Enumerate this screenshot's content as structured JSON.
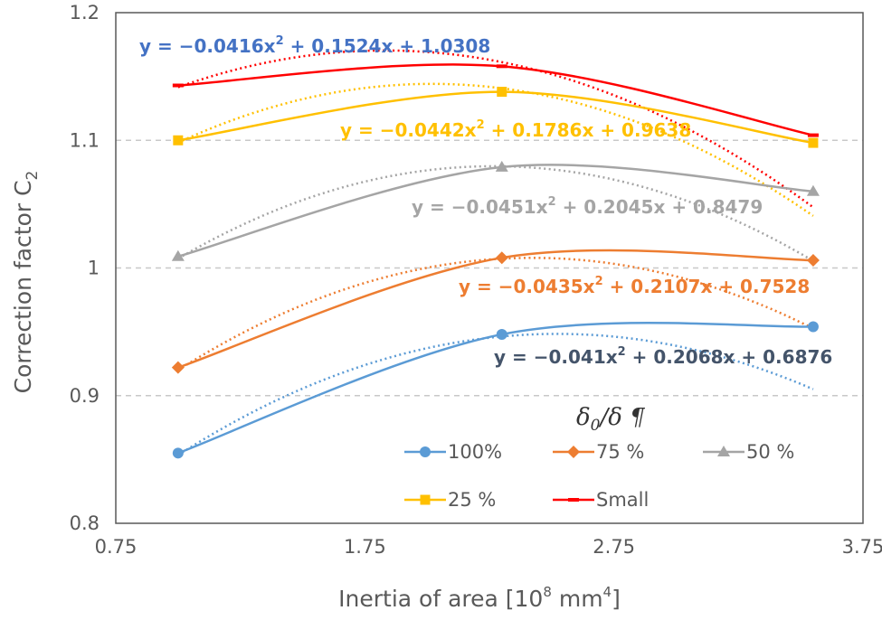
{
  "chart_data": {
    "type": "line",
    "xlabel": "Inertia of area [10",
    "xlabel_exp": "8",
    "xlabel_unit": " mm",
    "xlabel_unit_exp": "4",
    "xlabel_close": "]",
    "ylabel": "Correction factor C",
    "ylabel_sub": "2",
    "xlim": [
      0.75,
      3.75
    ],
    "ylim": [
      0.8,
      1.2
    ],
    "x_ticks": [
      "0.75",
      "1.75",
      "2.75",
      "3.75"
    ],
    "y_ticks": [
      "0.8",
      "0.9",
      "1",
      "1.1",
      "1.2"
    ],
    "y_tick_values": [
      0.8,
      0.9,
      1.0,
      1.1,
      1.2
    ],
    "x_tick_values": [
      0.75,
      1.75,
      2.75,
      3.75
    ],
    "grid": "horizontal dashed",
    "legend_title": {
      "main": "δ",
      "sub": "0",
      "rest": "/δ ¶"
    },
    "legend_position": "bottom-right",
    "series": [
      {
        "name": "100%",
        "color": "#5B9BD5",
        "marker": "circle",
        "x": [
          1.0,
          2.3,
          3.55
        ],
        "values": [
          0.855,
          0.948,
          0.954
        ],
        "trend": {
          "a": -0.041,
          "b": 0.2068,
          "c": 0.6876
        },
        "equation": {
          "pre": "y = −0.041x",
          "exp": "2",
          "post": " + 0.2068x + 0.6876"
        },
        "eq_color": "#44546A"
      },
      {
        "name": "75 %",
        "color": "#ED7D31",
        "marker": "diamond",
        "x": [
          1.0,
          2.3,
          3.55
        ],
        "values": [
          0.922,
          1.008,
          1.006
        ],
        "trend": {
          "a": -0.0435,
          "b": 0.2107,
          "c": 0.7528
        },
        "equation": {
          "pre": "y = −0.0435x",
          "exp": "2",
          "post": " + 0.2107x + 0.7528"
        },
        "eq_color": "#ED7D31"
      },
      {
        "name": "50 %",
        "color": "#A5A5A5",
        "marker": "triangle",
        "x": [
          1.0,
          2.3,
          3.55
        ],
        "values": [
          1.009,
          1.079,
          1.06
        ],
        "trend": {
          "a": -0.0451,
          "b": 0.2045,
          "c": 0.8479
        },
        "equation": {
          "pre": "y = −0.0451x",
          "exp": "2",
          "post": " + 0.2045x + 0.8479"
        },
        "eq_color": "#A5A5A5"
      },
      {
        "name": "25 %",
        "color": "#FFC000",
        "marker": "square",
        "x": [
          1.0,
          2.3,
          3.55
        ],
        "values": [
          1.1,
          1.138,
          1.098
        ],
        "trend": {
          "a": -0.0442,
          "b": 0.1786,
          "c": 0.9638
        },
        "equation": {
          "pre": "y = −0.0442x",
          "exp": "2",
          "post": " + 0.1786x + 0.9638"
        },
        "eq_color": "#FFC000"
      },
      {
        "name": "Small",
        "color": "#FF0000",
        "marker": "dash",
        "x": [
          1.0,
          2.3,
          3.55
        ],
        "values": [
          1.143,
          1.158,
          1.104
        ],
        "trend": {
          "a": -0.0416,
          "b": 0.1524,
          "c": 1.0308
        },
        "equation": {
          "pre": "y = −0.0416x",
          "exp": "2",
          "post": " + 0.1524x + 1.0308"
        },
        "eq_color": "#4472C4"
      }
    ]
  }
}
